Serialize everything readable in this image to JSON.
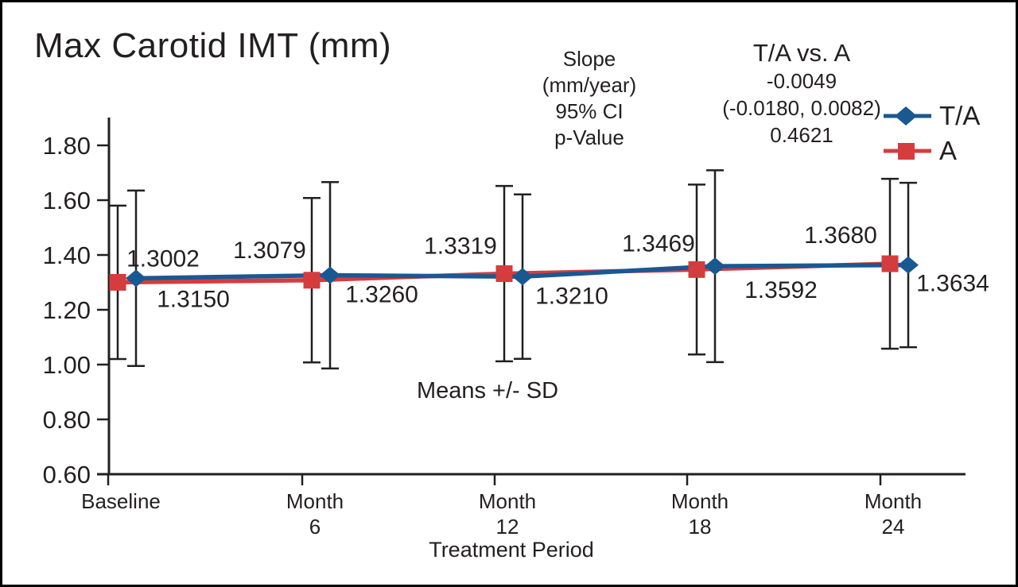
{
  "page": {
    "background": "#ffffff",
    "frame_border": "#000000",
    "ink": "#231F20"
  },
  "title": "Max Carotid IMT (mm)",
  "stats": {
    "row_labels": [
      "Slope",
      "(mm/year)",
      "95% CI",
      "p-Value"
    ],
    "comparison_header": "T/A vs. A",
    "slope": "-0.0049",
    "ci": "(-0.0180, 0.0082)",
    "p_value": "0.4621"
  },
  "legend": [
    {
      "label": "T/A",
      "color": "#1A5892",
      "marker": "diamond"
    },
    {
      "label": "A",
      "color": "#D53C3E",
      "marker": "square"
    }
  ],
  "chart_data": {
    "type": "line",
    "title": "Max Carotid IMT (mm)",
    "xlabel": "Treatment Period",
    "ylabel": "",
    "annotation": "Means +/- SD",
    "error_bars": "mean +/- SD",
    "grid": false,
    "legend_position": "top-right",
    "categories": [
      "Baseline",
      "Month 6",
      "Month 12",
      "Month 18",
      "Month 24"
    ],
    "x_tick_labels": [
      [
        "Baseline"
      ],
      [
        "Month",
        "6"
      ],
      [
        "Month",
        "12"
      ],
      [
        "Month",
        "18"
      ],
      [
        "Month",
        "24"
      ]
    ],
    "y_ticks": [
      "1.80",
      "1.60",
      "1.40",
      "1.20",
      "1.00",
      "0.80",
      "0.60"
    ],
    "ylim": [
      0.6,
      1.8
    ],
    "series": [
      {
        "name": "A",
        "color": "#D53C3E",
        "marker": "square",
        "values": [
          1.3002,
          1.3079,
          1.3319,
          1.3469,
          1.368
        ],
        "point_labels": [
          "1.3002",
          "1.3079",
          "1.3319",
          "1.3469",
          "1.3680"
        ],
        "sd": [
          0.28,
          0.3,
          0.32,
          0.31,
          0.31
        ]
      },
      {
        "name": "T/A",
        "color": "#1A5892",
        "marker": "diamond",
        "values": [
          1.315,
          1.326,
          1.321,
          1.3592,
          1.3634
        ],
        "point_labels": [
          "1.3150",
          "1.3260",
          "1.3210",
          "1.3592",
          "1.3634"
        ],
        "sd": [
          0.32,
          0.34,
          0.3,
          0.35,
          0.3
        ]
      }
    ]
  }
}
